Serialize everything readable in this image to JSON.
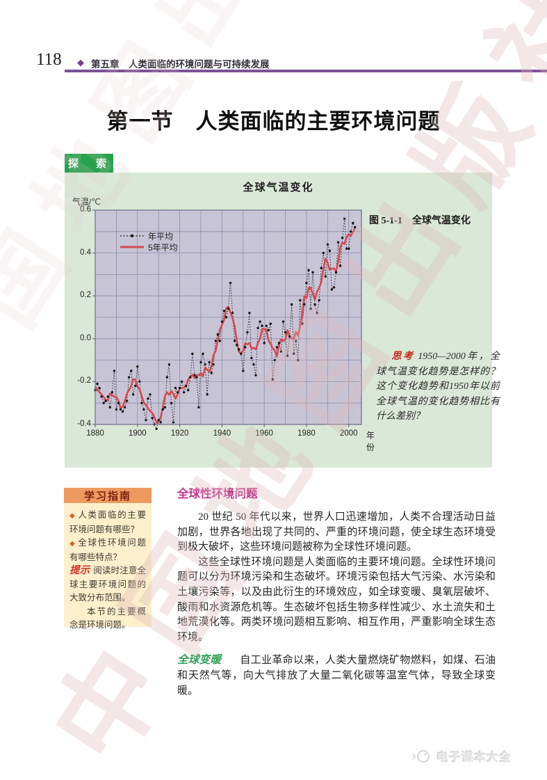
{
  "page": {
    "number": "118",
    "chapter": "第五章　人类面临的环境问题与可持续发展",
    "section_title": "第一节　人类面临的主要环境问题",
    "explore_tab": "探　索",
    "figure_caption": "图 5-1-1　全球气温变化",
    "think_label": "思考",
    "think_text": "1950—2000年，全球气温变化趋势是怎样的？这个变化趋势和1950年以前全球气温的变化趋势相比有什么差别？",
    "watermark_diagonal": "中国地图出版社",
    "watermark_bottom": "电子课本大全"
  },
  "study_guide": {
    "title": "学习指南",
    "bullets": [
      "人类面临的主要环境问题有哪些？",
      "全球性环境问题有哪些特点？"
    ],
    "tip_label": "提示",
    "tip_text": "阅读时注意全球主要环境问题的大致分布范围。",
    "note_text": "本节的主要概念是环境问题。"
  },
  "content": {
    "heading1": "全球性环境问题",
    "para1": "20 世纪 50 年代以来，世界人口迅速增加，人类不合理活动日益加剧，世界各地出现了共同的、严重的环境问题，使全球生态环境受到极大破坏，这些环境问题被称为全球性环境问题。",
    "para2": "这些全球性环境问题是人类面临的主要环境问题。全球性环境问题可以分为环境污染和生态破坏。环境污染包括大气污染、水污染和土壤污染等，以及由此衍生的环境效应，如全球变暖、臭氧层破坏、酸雨和水资源危机等。生态破坏包括生物多样性减少、水土流失和土地荒漠化等。两类环境问题相互影响、相互作用，严重影响全球生态环境。",
    "heading2": "全球变暖",
    "para3": "自工业革命以来，人类大量燃烧矿物燃料，如煤、石油和天然气等，向大气排放了大量二氧化碳等温室气体，导致全球变暖。"
  },
  "chart_data": {
    "type": "line",
    "title": "全球气温变化",
    "ylabel": "气温/℃",
    "xlabel": "年份",
    "ylim": [
      -0.4,
      0.6
    ],
    "xlim": [
      1880,
      2006
    ],
    "yticks": [
      "0.6",
      "0.4",
      "0.2",
      "0.0",
      "-0.2",
      "-0.4"
    ],
    "xticks": [
      1880,
      1900,
      1920,
      1940,
      1960,
      1980,
      2000
    ],
    "grid": "horizontal every 0.1 °C, vertical every 10 years",
    "legend": [
      {
        "name": "年平均",
        "style": "black dotted line with dots"
      },
      {
        "name": "5年平均",
        "style": "red solid line"
      }
    ],
    "series": [
      {
        "name": "年平均",
        "start_year": 1880,
        "step": 1,
        "values": [
          -0.24,
          -0.21,
          -0.23,
          -0.27,
          -0.3,
          -0.29,
          -0.27,
          -0.32,
          -0.25,
          -0.15,
          -0.33,
          -0.3,
          -0.33,
          -0.34,
          -0.32,
          -0.29,
          -0.18,
          -0.15,
          -0.26,
          -0.22,
          -0.13,
          -0.2,
          -0.3,
          -0.33,
          -0.38,
          -0.28,
          -0.26,
          -0.37,
          -0.4,
          -0.42,
          -0.38,
          -0.39,
          -0.33,
          -0.32,
          -0.18,
          -0.12,
          -0.3,
          -0.39,
          -0.23,
          -0.25,
          -0.23,
          -0.2,
          -0.25,
          -0.22,
          -0.24,
          -0.18,
          -0.07,
          -0.17,
          -0.18,
          -0.32,
          -0.11,
          -0.07,
          -0.12,
          -0.26,
          -0.11,
          -0.16,
          -0.12,
          -0.01,
          0.02,
          -0.01,
          0.08,
          0.13,
          0.1,
          0.14,
          0.26,
          0.12,
          -0.01,
          -0.03,
          -0.05,
          -0.07,
          -0.15,
          -0.04,
          0.03,
          0.12,
          -0.09,
          -0.12,
          -0.17,
          0.05,
          0.08,
          0.06,
          -0.02,
          0.06,
          0.04,
          0.07,
          -0.19,
          -0.1,
          -0.04,
          -0.02,
          -0.06,
          0.08,
          0.03,
          -0.08,
          0.01,
          0.16,
          -0.07,
          -0.01,
          -0.1,
          0.18,
          0.07,
          0.16,
          0.26,
          0.32,
          0.14,
          0.31,
          0.16,
          0.12,
          0.18,
          0.33,
          0.4,
          0.29,
          0.44,
          0.41,
          0.23,
          0.24,
          0.31,
          0.45,
          0.34,
          0.47,
          0.56,
          0.42,
          0.42,
          0.5,
          0.54,
          0.52
        ]
      },
      {
        "name": "5年平均",
        "derived": true,
        "derivation": "5-year centered moving average of 年平均"
      }
    ],
    "colors": {
      "plot_bg": "#c7c4d6",
      "grid": "#8e8bac",
      "annual": "#1c1c1c",
      "five_year": "#d6494f"
    }
  }
}
